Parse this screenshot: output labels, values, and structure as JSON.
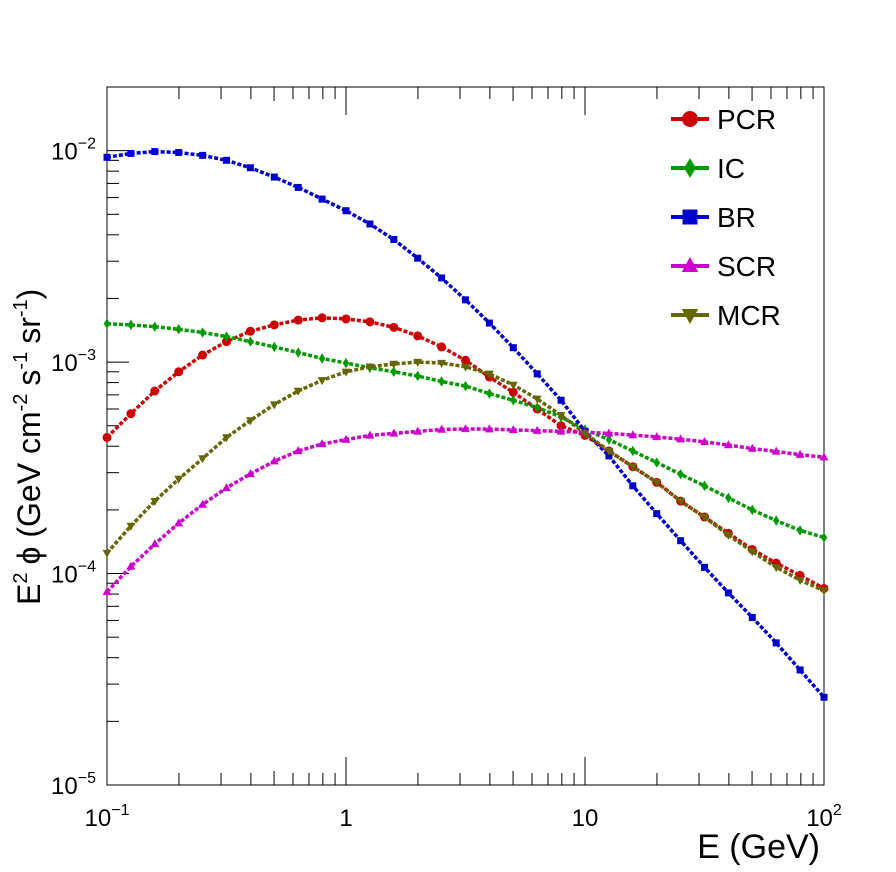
{
  "chart_data": {
    "type": "line",
    "x_scale": "log",
    "y_scale": "log",
    "xlim": [
      0.1,
      100
    ],
    "ylim": [
      1e-05,
      0.02
    ],
    "xlabel": "E (GeV)",
    "ylabel": {
      "base": "E",
      "base_sup": "2",
      "symbol": "ϕ",
      "open": "(GeV cm",
      "cm_exp": "-2",
      "s": "s",
      "s_exp": "-1",
      "sr": "sr",
      "sr_exp": "-1",
      "close": ")"
    },
    "x_ticks": [
      {
        "value": 0.1,
        "base": "10",
        "exp": "−1"
      },
      {
        "value": 1,
        "base": "1",
        "exp": ""
      },
      {
        "value": 10,
        "base": "10",
        "exp": ""
      },
      {
        "value": 100,
        "base": "10",
        "exp": "2"
      }
    ],
    "y_ticks": [
      {
        "value": 1e-05,
        "base": "10",
        "exp": "−5"
      },
      {
        "value": 0.0001,
        "base": "10",
        "exp": "−4"
      },
      {
        "value": 0.001,
        "base": "10",
        "exp": "−3"
      },
      {
        "value": 0.01,
        "base": "10",
        "exp": "−2"
      }
    ],
    "legend_position": "top-right",
    "x": [
      0.1,
      0.1259,
      0.1585,
      0.1995,
      0.2512,
      0.3162,
      0.3981,
      0.5012,
      0.631,
      0.7943,
      1.0,
      1.259,
      1.585,
      1.995,
      2.512,
      3.162,
      3.981,
      5.012,
      6.31,
      7.943,
      10.0,
      12.59,
      15.85,
      19.95,
      25.12,
      31.62,
      39.81,
      50.12,
      63.1,
      79.43,
      100.0
    ],
    "series": [
      {
        "name": "PCR",
        "color": "#cc0000",
        "marker": "circle",
        "values": [
          0.00044,
          0.00057,
          0.00073,
          0.0009,
          0.00108,
          0.00125,
          0.0014,
          0.0015,
          0.00158,
          0.00162,
          0.0016,
          0.00155,
          0.00146,
          0.00133,
          0.00118,
          0.00102,
          0.00085,
          0.00072,
          0.0006,
          0.0005,
          0.00045,
          0.00038,
          0.00032,
          0.00027,
          0.00022,
          0.000185,
          0.000155,
          0.00013,
          0.000112,
          9.8e-05,
          8.5e-05
        ]
      },
      {
        "name": "IC",
        "color": "#009900",
        "marker": "diamond",
        "values": [
          0.00152,
          0.0015,
          0.00147,
          0.00143,
          0.00138,
          0.00132,
          0.00125,
          0.00118,
          0.00111,
          0.00104,
          0.00099,
          0.00094,
          0.0009,
          0.00086,
          0.00081,
          0.00077,
          0.00071,
          0.00066,
          0.00061,
          0.00055,
          0.00048,
          0.00043,
          0.00038,
          0.000335,
          0.000295,
          0.00026,
          0.000228,
          0.0002,
          0.000178,
          0.00016,
          0.000148
        ]
      },
      {
        "name": "BR",
        "color": "#0000cc",
        "marker": "square",
        "values": [
          0.0093,
          0.0097,
          0.0099,
          0.0098,
          0.0095,
          0.009,
          0.0083,
          0.0075,
          0.0067,
          0.0059,
          0.0052,
          0.0045,
          0.0038,
          0.0031,
          0.0025,
          0.00197,
          0.00153,
          0.00117,
          0.00088,
          0.00066,
          0.00047,
          0.00036,
          0.00026,
          0.000192,
          0.000143,
          0.000107,
          8.1e-05,
          6.2e-05,
          4.7e-05,
          3.5e-05,
          2.6e-05
        ]
      },
      {
        "name": "SCR",
        "color": "#cc00cc",
        "marker": "triangle-up",
        "values": [
          8.2e-05,
          0.000108,
          0.000138,
          0.000173,
          0.000212,
          0.000254,
          0.000296,
          0.00034,
          0.00038,
          0.00041,
          0.00043,
          0.00045,
          0.00046,
          0.00047,
          0.00048,
          0.000483,
          0.000482,
          0.000478,
          0.000474,
          0.00047,
          0.000465,
          0.00046,
          0.000452,
          0.000443,
          0.000432,
          0.00042,
          0.000405,
          0.00039,
          0.000378,
          0.000365,
          0.000355
        ]
      },
      {
        "name": "MCR",
        "color": "#666600",
        "marker": "triangle-down",
        "values": [
          0.000125,
          0.000168,
          0.00022,
          0.00028,
          0.00035,
          0.00044,
          0.00053,
          0.00063,
          0.00073,
          0.00082,
          0.0009,
          0.00095,
          0.00098,
          0.001,
          0.00099,
          0.00095,
          0.00088,
          0.00078,
          0.00067,
          0.00056,
          0.00046,
          0.00038,
          0.00032,
          0.00027,
          0.00022,
          0.000185,
          0.000152,
          0.000127,
          0.000107,
          9.3e-05,
          8.3e-05
        ]
      }
    ]
  }
}
